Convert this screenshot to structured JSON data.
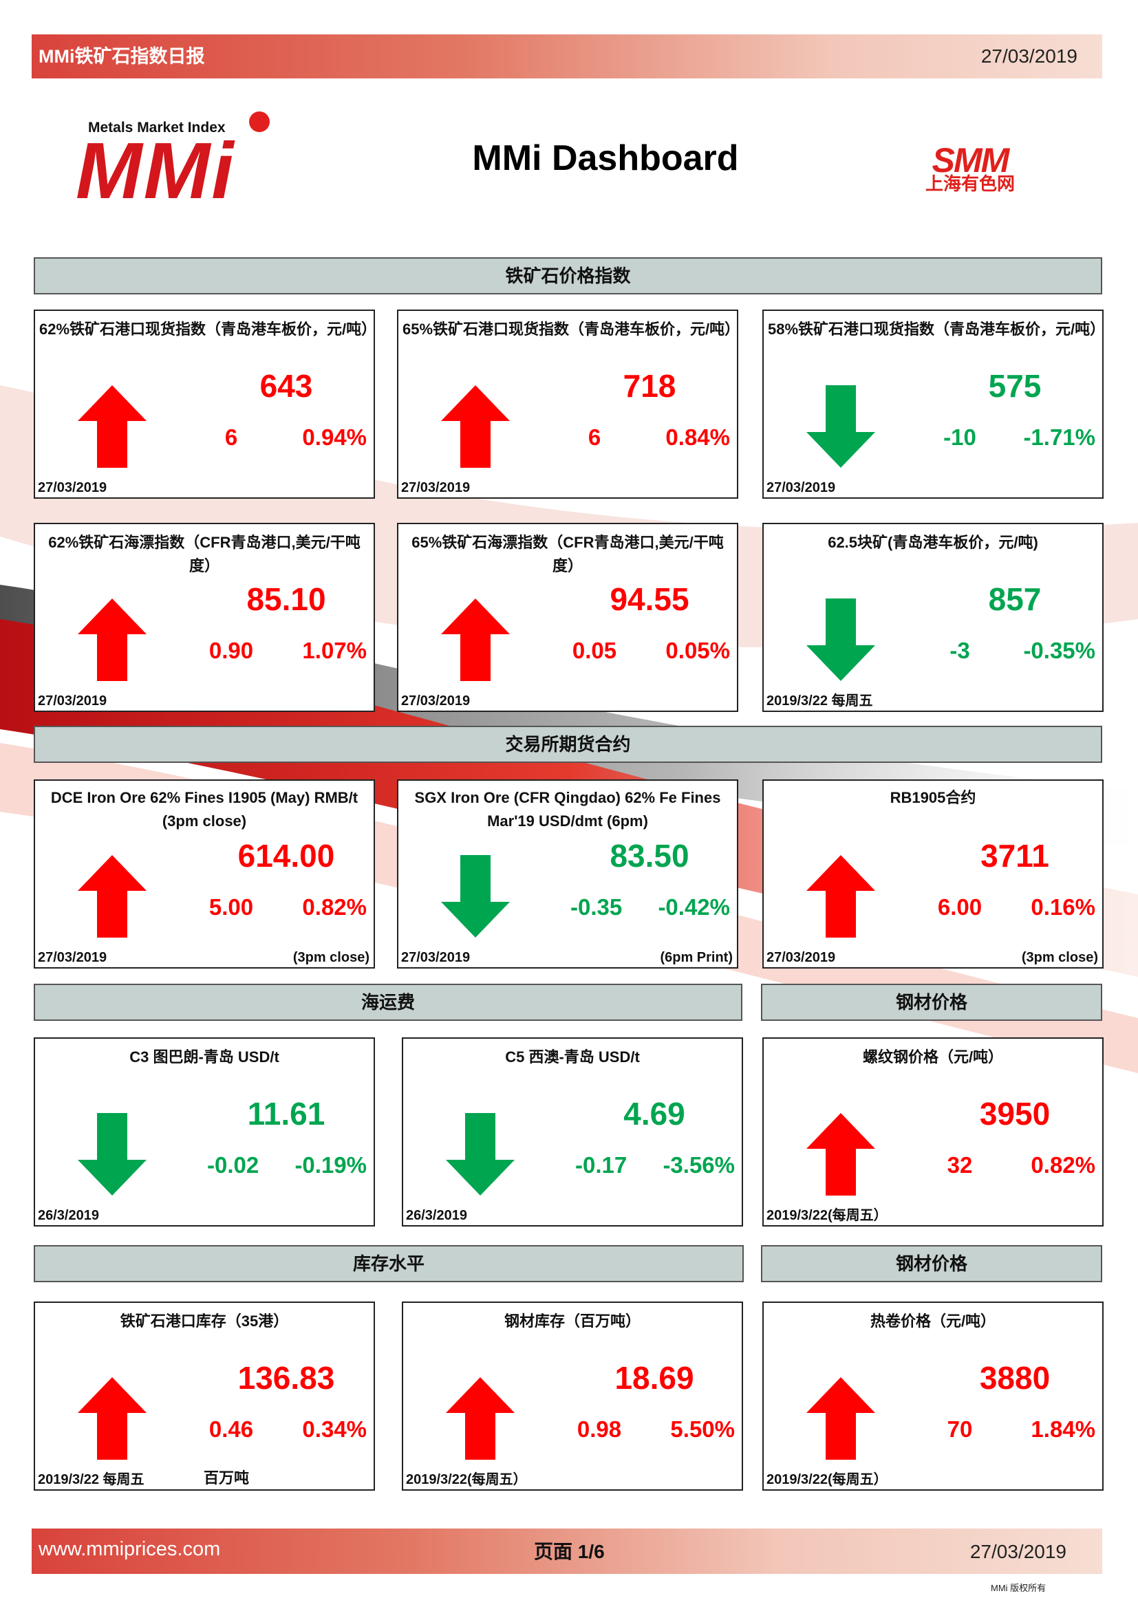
{
  "header": {
    "title": "MMi铁矿石指数日报",
    "date": "27/03/2019"
  },
  "logo": {
    "subtitle": "Metals Market Index",
    "mark": "MMi"
  },
  "dashboard_title": "MMi Dashboard",
  "smm_logo": {
    "mark": "SMM",
    "cn": "上海有色网"
  },
  "sections": {
    "price_index": "铁矿石价格指数",
    "futures": "交易所期货合约",
    "freight": "海运费",
    "steel_price_1": "钢材价格",
    "inventory": "库存水平",
    "steel_price_2": "钢材价格"
  },
  "colors": {
    "up": "#ff0000",
    "down": "#00a550"
  },
  "cards": [
    {
      "title": "62%铁矿石港口现货指数（青岛港车板价，元/吨）",
      "value": "643",
      "change": "6",
      "pct": "0.94%",
      "date": "27/03/2019",
      "dir": "up"
    },
    {
      "title": "65%铁矿石港口现货指数（青岛港车板价，元/吨）",
      "value": "718",
      "change": "6",
      "pct": "0.84%",
      "date": "27/03/2019",
      "dir": "up"
    },
    {
      "title": "58%铁矿石港口现货指数（青岛港车板价，元/吨）",
      "value": "575",
      "change": "-10",
      "pct": "-1.71%",
      "date": "27/03/2019",
      "dir": "down"
    },
    {
      "title": "62%铁矿石海漂指数（CFR青岛港口,美元/干吨度）",
      "value": "85.10",
      "change": "0.90",
      "pct": "1.07%",
      "date": "27/03/2019",
      "dir": "up"
    },
    {
      "title": "65%铁矿石海漂指数（CFR青岛港口,美元/干吨度）",
      "value": "94.55",
      "change": "0.05",
      "pct": "0.05%",
      "date": "27/03/2019",
      "dir": "up"
    },
    {
      "title": "62.5块矿(青岛港车板价，元/吨)",
      "value": "857",
      "change": "-3",
      "pct": "-0.35%",
      "date": "2019/3/22 每周五",
      "dir": "down"
    },
    {
      "title": "DCE Iron Ore 62% Fines I1905 (May) RMB/t (3pm close)",
      "value": "614.00",
      "change": "5.00",
      "pct": "0.82%",
      "date": "27/03/2019",
      "note": "(3pm close)",
      "dir": "up"
    },
    {
      "title": "SGX Iron Ore (CFR Qingdao) 62% Fe Fines Mar'19 USD/dmt (6pm)",
      "value": "83.50",
      "change": "-0.35",
      "pct": "-0.42%",
      "date": "27/03/2019",
      "note": "(6pm Print)",
      "dir": "down"
    },
    {
      "title": "RB1905合约",
      "value": "3711",
      "change": "6.00",
      "pct": "0.16%",
      "date": "27/03/2019",
      "note": "(3pm close)",
      "dir": "up"
    },
    {
      "title": "C3 图巴朗-青岛 USD/t",
      "value": "11.61",
      "change": "-0.02",
      "pct": "-0.19%",
      "date": "26/3/2019",
      "dir": "down"
    },
    {
      "title": "C5 西澳-青岛 USD/t",
      "value": "4.69",
      "change": "-0.17",
      "pct": "-3.56%",
      "date": "26/3/2019",
      "dir": "down"
    },
    {
      "title": "螺纹钢价格（元/吨）",
      "value": "3950",
      "change": "32",
      "pct": "0.82%",
      "date": "2019/3/22(每周五）",
      "dir": "up"
    },
    {
      "title": "铁矿石港口库存（35港）",
      "value": "136.83",
      "change": "0.46",
      "pct": "0.34%",
      "date": "2019/3/22 每周五",
      "unit": "百万吨",
      "dir": "up"
    },
    {
      "title": "钢材库存（百万吨）",
      "value": "18.69",
      "change": "0.98",
      "pct": "5.50%",
      "date": "2019/3/22(每周五）",
      "dir": "up"
    },
    {
      "title": "热卷价格（元/吨）",
      "value": "3880",
      "change": "70",
      "pct": "1.84%",
      "date": "2019/3/22(每周五）",
      "dir": "up"
    }
  ],
  "footer": {
    "url": "www.mmiprices.com",
    "page": "页面 1/6",
    "date": "27/03/2019",
    "copyright": "MMi 版权所有"
  }
}
